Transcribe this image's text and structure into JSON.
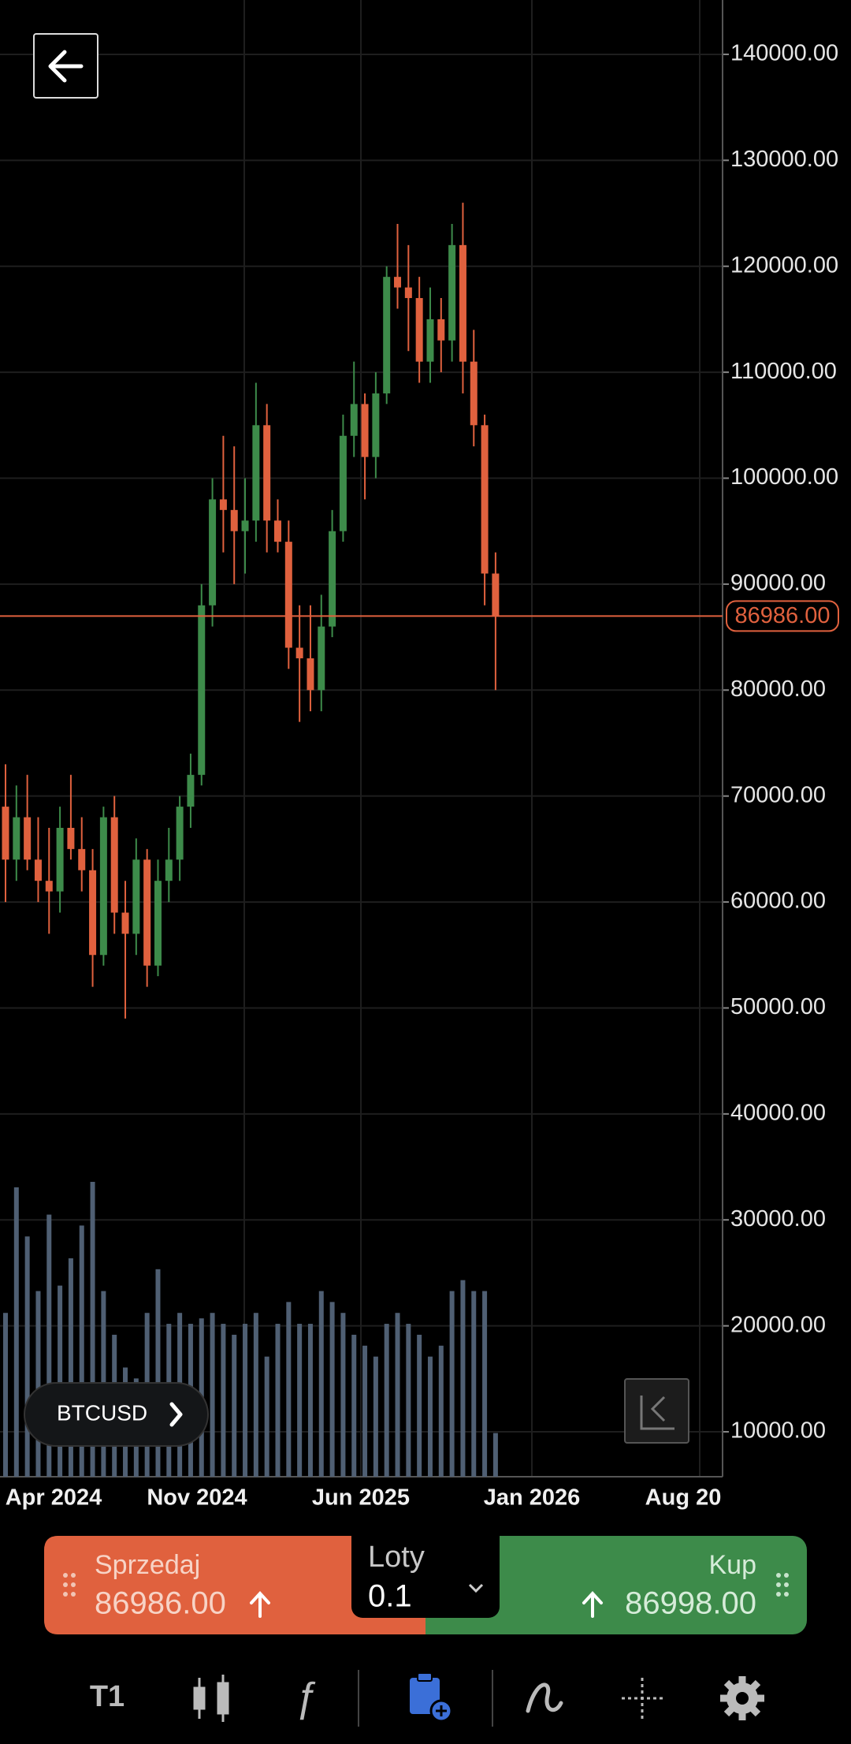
{
  "chart_data": {
    "type": "candlestick",
    "open": [
      69000,
      64000,
      68000,
      64000,
      62000,
      61000,
      67000,
      65000,
      63000,
      55000,
      68000,
      59000,
      57000,
      64000,
      54000,
      62000,
      64000,
      69000,
      72000,
      88000,
      98000,
      97000,
      95000,
      96000,
      105000,
      96000,
      94000,
      84000,
      83000,
      80000,
      86000,
      95000,
      104000,
      107000,
      102000,
      108000,
      119000,
      118000,
      117000,
      111000,
      115000,
      113000,
      122000,
      111000,
      105000,
      91000
    ],
    "high": [
      73000,
      71000,
      72000,
      68000,
      67000,
      69000,
      72000,
      68000,
      65000,
      69000,
      70000,
      62000,
      66000,
      65000,
      64000,
      67000,
      70000,
      74000,
      90000,
      100000,
      104000,
      103000,
      100000,
      109000,
      107000,
      98000,
      96000,
      88000,
      88000,
      89000,
      97000,
      106000,
      111000,
      108000,
      110000,
      120000,
      124000,
      122000,
      119000,
      118000,
      117000,
      124000,
      126000,
      114000,
      106000,
      93000
    ],
    "low": [
      60000,
      62000,
      63000,
      60000,
      57000,
      59000,
      64000,
      61000,
      52000,
      54000,
      57000,
      49000,
      55000,
      52000,
      53000,
      60000,
      62000,
      67000,
      71000,
      86000,
      93000,
      90000,
      91000,
      94000,
      93000,
      93000,
      82000,
      77000,
      78000,
      78000,
      85000,
      94000,
      102000,
      98000,
      100000,
      107000,
      116000,
      112000,
      109000,
      109000,
      110000,
      111000,
      108000,
      103000,
      88000,
      80000
    ],
    "close": [
      64000,
      68000,
      64000,
      62000,
      61000,
      67000,
      65000,
      63000,
      55000,
      68000,
      59000,
      57000,
      64000,
      54000,
      62000,
      64000,
      69000,
      72000,
      88000,
      98000,
      97000,
      95000,
      96000,
      105000,
      96000,
      94000,
      84000,
      83000,
      80000,
      86000,
      95000,
      104000,
      107000,
      102000,
      108000,
      119000,
      118000,
      117000,
      111000,
      115000,
      113000,
      122000,
      111000,
      105000,
      91000,
      86986
    ],
    "volume": [
      150,
      265,
      220,
      170,
      240,
      175,
      200,
      230,
      270,
      170,
      130,
      100,
      90,
      150,
      190,
      140,
      150,
      140,
      145,
      150,
      140,
      130,
      140,
      150,
      110,
      140,
      160,
      140,
      140,
      170,
      160,
      150,
      130,
      120,
      110,
      140,
      150,
      140,
      130,
      110,
      120,
      170,
      180,
      170,
      170,
      40
    ],
    "up_color": "#3d8b4a",
    "down_color": "#e0613e",
    "volume_color": "#4f5f73",
    "ylim": [
      5760,
      145130
    ],
    "yticks": [
      {
        "value": 140000,
        "label": "140000.00"
      },
      {
        "value": 130000,
        "label": "130000.00"
      },
      {
        "value": 120000,
        "label": "120000.00"
      },
      {
        "value": 110000,
        "label": "110000.00"
      },
      {
        "value": 100000,
        "label": "100000.00"
      },
      {
        "value": 90000,
        "label": "90000.00"
      },
      {
        "value": 80000,
        "label": "80000.00"
      },
      {
        "value": 70000,
        "label": "70000.00"
      },
      {
        "value": 60000,
        "label": "60000.00"
      },
      {
        "value": 50000,
        "label": "50000.00"
      },
      {
        "value": 40000,
        "label": "40000.00"
      },
      {
        "value": 30000,
        "label": "30000.00"
      },
      {
        "value": 20000,
        "label": "20000.00"
      },
      {
        "value": 10000,
        "label": "10000.00"
      }
    ],
    "xtick_labels": [
      "Apr 2024",
      "Nov 2024",
      "Jun 2025",
      "Jan 2026",
      "Aug 20"
    ],
    "current_price": {
      "value": 86986,
      "label": "86986.00"
    },
    "grid": true
  },
  "symbol": "BTCUSD",
  "trade_panel": {
    "sell_label": "Sprzedaj",
    "sell_price": "86986.00",
    "lots_label": "Loty",
    "lots": "0.1",
    "buy_label": "Kup",
    "buy_price": "86998.00"
  },
  "toolbar": {
    "timeframe": "T1"
  }
}
